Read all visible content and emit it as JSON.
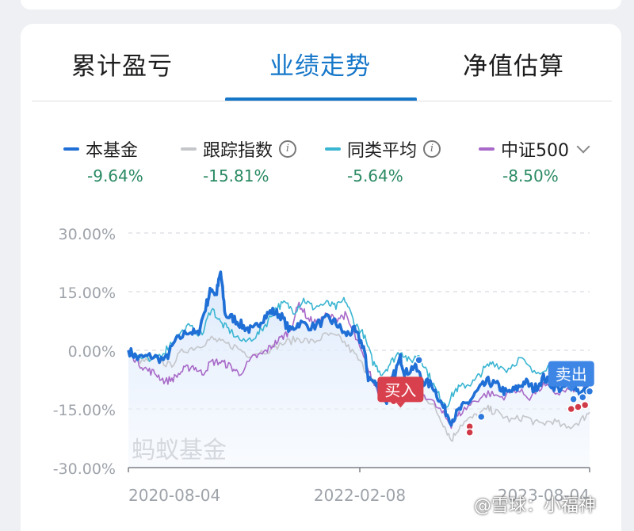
{
  "tabs": [
    {
      "label": "累计盈亏",
      "active": false
    },
    {
      "label": "业绩走势",
      "active": true
    },
    {
      "label": "净值估算",
      "active": false
    }
  ],
  "legend": [
    {
      "name": "本基金",
      "value": "-9.64%",
      "color": "#1f6fd6",
      "info": false
    },
    {
      "name": "跟踪指数",
      "value": "-15.81%",
      "color": "#c4c6ca",
      "info": true
    },
    {
      "name": "同类平均",
      "value": "-5.64%",
      "color": "#3ab5d2",
      "info": true
    },
    {
      "name": "中证500",
      "value": "-8.50%",
      "color": "#a869c8",
      "info": false,
      "dropdown": true
    }
  ],
  "chart_data": {
    "type": "line",
    "title": "",
    "xlabel": "",
    "ylabel": "",
    "x_ticks": [
      "2020-08-04",
      "2022-02-08",
      "2023-08-04"
    ],
    "x_range": [
      "2020-08-04",
      "2023-08-04"
    ],
    "y_ticks": [
      "30.00%",
      "15.00%",
      "0.00%",
      "-15.00%",
      "-30.00%"
    ],
    "ylim": [
      -30,
      30
    ],
    "grid": true,
    "series": [
      {
        "name": "本基金",
        "color": "#1f6fd6",
        "final": -9.64,
        "points": [
          [
            0,
            0
          ],
          [
            0.02,
            -2
          ],
          [
            0.05,
            -1.5
          ],
          [
            0.08,
            -2.5
          ],
          [
            0.1,
            2
          ],
          [
            0.13,
            5
          ],
          [
            0.15,
            4
          ],
          [
            0.17,
            12
          ],
          [
            0.18,
            16
          ],
          [
            0.19,
            14
          ],
          [
            0.2,
            20
          ],
          [
            0.21,
            9
          ],
          [
            0.23,
            8
          ],
          [
            0.25,
            6
          ],
          [
            0.27,
            5
          ],
          [
            0.29,
            8
          ],
          [
            0.31,
            10
          ],
          [
            0.33,
            9
          ],
          [
            0.35,
            5
          ],
          [
            0.37,
            7
          ],
          [
            0.4,
            6
          ],
          [
            0.43,
            8
          ],
          [
            0.45,
            7
          ],
          [
            0.47,
            4
          ],
          [
            0.49,
            5
          ],
          [
            0.51,
            1
          ],
          [
            0.52,
            -7
          ],
          [
            0.54,
            -9
          ],
          [
            0.56,
            -13
          ],
          [
            0.57,
            -8
          ],
          [
            0.59,
            -2
          ],
          [
            0.6,
            -6
          ],
          [
            0.62,
            -4
          ],
          [
            0.64,
            -8
          ],
          [
            0.66,
            -9
          ],
          [
            0.68,
            -14
          ],
          [
            0.7,
            -18
          ],
          [
            0.72,
            -15
          ],
          [
            0.74,
            -13
          ],
          [
            0.76,
            -10
          ],
          [
            0.78,
            -8
          ],
          [
            0.8,
            -9
          ],
          [
            0.82,
            -11
          ],
          [
            0.84,
            -10
          ],
          [
            0.86,
            -8
          ],
          [
            0.88,
            -10
          ],
          [
            0.9,
            -7
          ],
          [
            0.92,
            -9
          ],
          [
            0.94,
            -10
          ],
          [
            0.96,
            -8
          ],
          [
            0.98,
            -11
          ],
          [
            1,
            -9.64
          ]
        ]
      },
      {
        "name": "跟踪指数",
        "color": "#c4c6ca",
        "final": -15.81,
        "points": [
          [
            0,
            0
          ],
          [
            0.03,
            -3
          ],
          [
            0.06,
            -2
          ],
          [
            0.09,
            -4
          ],
          [
            0.12,
            0
          ],
          [
            0.15,
            1
          ],
          [
            0.18,
            3
          ],
          [
            0.2,
            2
          ],
          [
            0.23,
            1
          ],
          [
            0.26,
            -1
          ],
          [
            0.3,
            0
          ],
          [
            0.34,
            2
          ],
          [
            0.37,
            3
          ],
          [
            0.4,
            2
          ],
          [
            0.43,
            4
          ],
          [
            0.46,
            3
          ],
          [
            0.49,
            -1
          ],
          [
            0.52,
            -6
          ],
          [
            0.55,
            -11
          ],
          [
            0.57,
            -9
          ],
          [
            0.6,
            -8
          ],
          [
            0.63,
            -10
          ],
          [
            0.66,
            -14
          ],
          [
            0.68,
            -18
          ],
          [
            0.7,
            -23
          ],
          [
            0.72,
            -19
          ],
          [
            0.75,
            -17
          ],
          [
            0.78,
            -15
          ],
          [
            0.8,
            -16
          ],
          [
            0.83,
            -18
          ],
          [
            0.86,
            -17
          ],
          [
            0.89,
            -19
          ],
          [
            0.92,
            -18
          ],
          [
            0.95,
            -20
          ],
          [
            0.98,
            -18
          ],
          [
            1,
            -15.81
          ]
        ]
      },
      {
        "name": "同类平均",
        "color": "#3ab5d2",
        "final": -5.64,
        "points": [
          [
            0,
            0
          ],
          [
            0.02,
            -1.5
          ],
          [
            0.05,
            -3
          ],
          [
            0.08,
            0
          ],
          [
            0.1,
            3
          ],
          [
            0.13,
            6
          ],
          [
            0.16,
            4
          ],
          [
            0.18,
            11
          ],
          [
            0.2,
            7
          ],
          [
            0.22,
            5
          ],
          [
            0.25,
            2
          ],
          [
            0.28,
            4
          ],
          [
            0.3,
            7
          ],
          [
            0.32,
            11
          ],
          [
            0.34,
            12
          ],
          [
            0.36,
            10
          ],
          [
            0.38,
            13
          ],
          [
            0.4,
            11
          ],
          [
            0.43,
            12
          ],
          [
            0.45,
            11
          ],
          [
            0.47,
            13
          ],
          [
            0.49,
            7
          ],
          [
            0.51,
            4
          ],
          [
            0.53,
            -3
          ],
          [
            0.55,
            -6
          ],
          [
            0.57,
            -3
          ],
          [
            0.59,
            0
          ],
          [
            0.61,
            -3
          ],
          [
            0.63,
            -1
          ],
          [
            0.65,
            -6
          ],
          [
            0.67,
            -11
          ],
          [
            0.69,
            -14
          ],
          [
            0.71,
            -10
          ],
          [
            0.73,
            -9
          ],
          [
            0.75,
            -8
          ],
          [
            0.77,
            -5
          ],
          [
            0.79,
            -3
          ],
          [
            0.82,
            -5
          ],
          [
            0.85,
            -2
          ],
          [
            0.88,
            -6
          ],
          [
            0.91,
            -4
          ],
          [
            0.94,
            -6
          ],
          [
            0.97,
            -4
          ],
          [
            1,
            -5.64
          ]
        ]
      },
      {
        "name": "中证500",
        "color": "#a869c8",
        "final": -8.5,
        "points": [
          [
            0,
            0
          ],
          [
            0.02,
            -3
          ],
          [
            0.04,
            -5
          ],
          [
            0.06,
            -6
          ],
          [
            0.08,
            -8
          ],
          [
            0.1,
            -7
          ],
          [
            0.12,
            -5
          ],
          [
            0.14,
            -4
          ],
          [
            0.16,
            -6
          ],
          [
            0.18,
            -3
          ],
          [
            0.2,
            -3
          ],
          [
            0.22,
            -4
          ],
          [
            0.24,
            -6
          ],
          [
            0.27,
            -2
          ],
          [
            0.29,
            -1
          ],
          [
            0.31,
            1
          ],
          [
            0.33,
            3
          ],
          [
            0.35,
            5
          ],
          [
            0.37,
            12
          ],
          [
            0.39,
            8
          ],
          [
            0.41,
            7
          ],
          [
            0.43,
            9
          ],
          [
            0.45,
            8
          ],
          [
            0.47,
            9
          ],
          [
            0.49,
            4
          ],
          [
            0.51,
            -2
          ],
          [
            0.53,
            -8
          ],
          [
            0.55,
            -12
          ],
          [
            0.57,
            -10
          ],
          [
            0.59,
            -9
          ],
          [
            0.62,
            -10
          ],
          [
            0.65,
            -12
          ],
          [
            0.68,
            -16
          ],
          [
            0.7,
            -19
          ],
          [
            0.72,
            -16
          ],
          [
            0.75,
            -13
          ],
          [
            0.78,
            -11
          ],
          [
            0.81,
            -12
          ],
          [
            0.84,
            -10
          ],
          [
            0.87,
            -12
          ],
          [
            0.9,
            -9
          ],
          [
            0.93,
            -11
          ],
          [
            0.96,
            -10
          ],
          [
            1,
            -8.5
          ]
        ]
      }
    ],
    "markers": [
      {
        "type": "buy",
        "label": "买入",
        "color": "#d9404d",
        "x": 0.59,
        "y": -10
      },
      {
        "type": "sell",
        "label": "卖出",
        "color": "#3d86e5",
        "x": 0.96,
        "y": -6
      }
    ],
    "buy_dots": [
      [
        0.575,
        -13
      ],
      [
        0.585,
        -12
      ],
      [
        0.595,
        -12.5
      ],
      [
        0.74,
        -19.5
      ],
      [
        0.74,
        -21
      ],
      [
        0.96,
        -15
      ],
      [
        0.975,
        -14.5
      ],
      [
        0.99,
        -14
      ]
    ],
    "sell_dots": [
      [
        0.63,
        -2.5
      ],
      [
        0.765,
        -17
      ],
      [
        0.965,
        -12.5
      ],
      [
        0.985,
        -12
      ],
      [
        1,
        -10.5
      ]
    ],
    "chart_watermark": "蚂蚁基金"
  },
  "watermark": "@雪球：小福神"
}
